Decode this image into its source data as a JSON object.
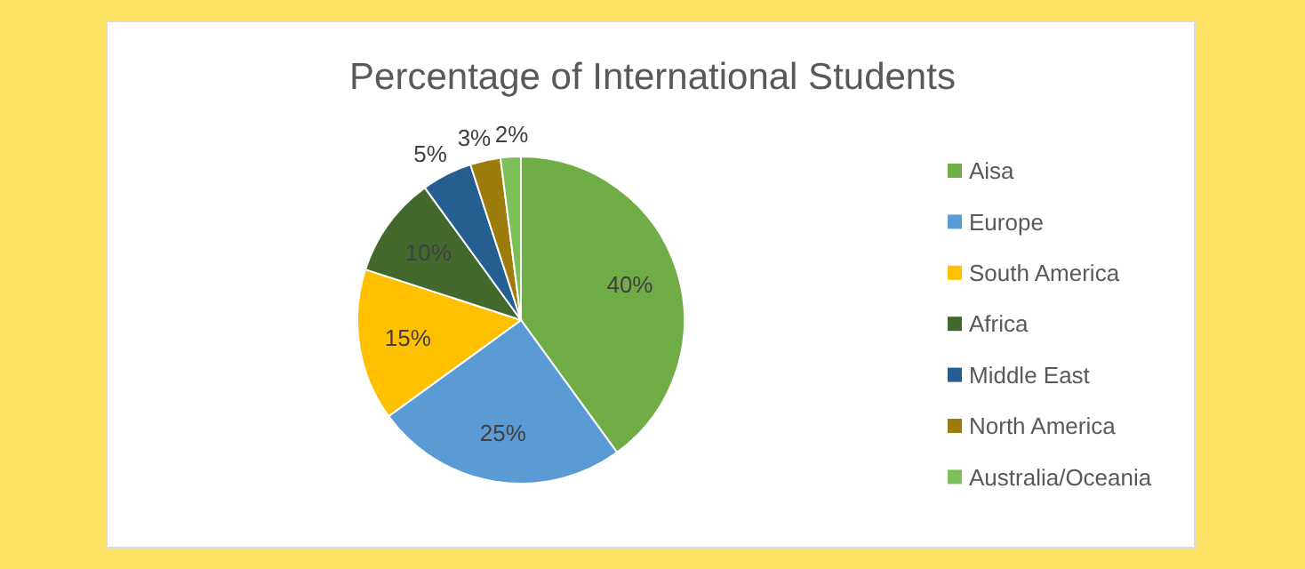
{
  "chart_data": {
    "type": "pie",
    "title": "Percentage of International Students",
    "categories": [
      "Aisa",
      "Europe",
      "South America",
      "Africa",
      "Middle East",
      "North America",
      "Australia/Oceania"
    ],
    "values": [
      40,
      25,
      15,
      10,
      5,
      3,
      2
    ],
    "value_labels": [
      "40%",
      "25%",
      "15%",
      "10%",
      "5%",
      "3%",
      "2%"
    ],
    "colors": [
      "#70ad47",
      "#5b9bd5",
      "#ffc000",
      "#43682b",
      "#255e91",
      "#9e7c0c",
      "#7cc05a"
    ],
    "legend": "right"
  }
}
